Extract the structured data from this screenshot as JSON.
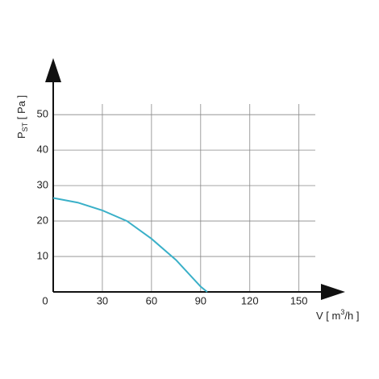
{
  "chart_data": {
    "type": "line",
    "x_label": {
      "main": "V [ m",
      "sup": "3",
      "end": "/h ]"
    },
    "y_label": {
      "main": "P",
      "sub": "ST",
      "end": " [ Pa ]"
    },
    "x": [
      0,
      15,
      30,
      45,
      60,
      75,
      90,
      94
    ],
    "series": [
      {
        "color": "#3ab0c8",
        "values": [
          26.5,
          25.2,
          23,
          20,
          15,
          9,
          1.5,
          0
        ]
      }
    ],
    "xlim": [
      0,
      160
    ],
    "ylim": [
      0,
      53
    ],
    "xticks": [
      0,
      30,
      60,
      90,
      120,
      150
    ],
    "yticks": [
      10,
      20,
      30,
      40,
      50
    ],
    "grid": true
  }
}
